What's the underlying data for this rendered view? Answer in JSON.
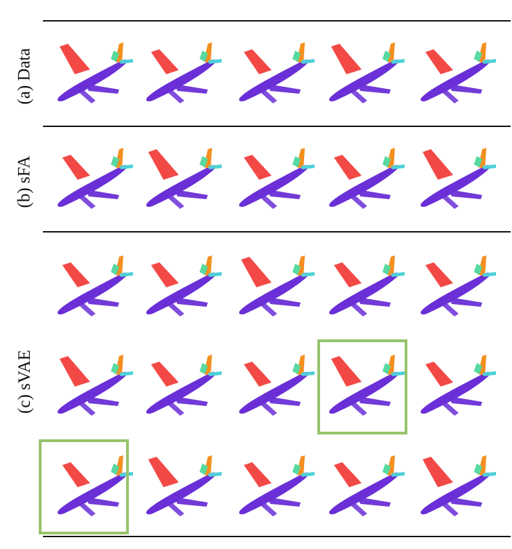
{
  "labels": {
    "data": "(a) Data",
    "sfa": "(b) sFA",
    "svae": "(c) sVAE"
  },
  "colors": {
    "body": "#6a2fd6",
    "wing": "#f23a36",
    "tail": "#f58f1f",
    "stabilizer": "#4fd0d6",
    "fin": "#57d9a0",
    "highlight": "#97c46b"
  },
  "icons": [
    "airplane-point-cloud-icon"
  ],
  "rows": [
    {
      "section": "data",
      "count": 5
    },
    {
      "section": "sfa",
      "count": 5
    },
    {
      "section": "svae",
      "count": 5
    },
    {
      "section": "svae",
      "count": 5
    },
    {
      "section": "svae",
      "count": 5
    }
  ],
  "highlighted": [
    "row-4-col-4",
    "row-5-col-1"
  ]
}
